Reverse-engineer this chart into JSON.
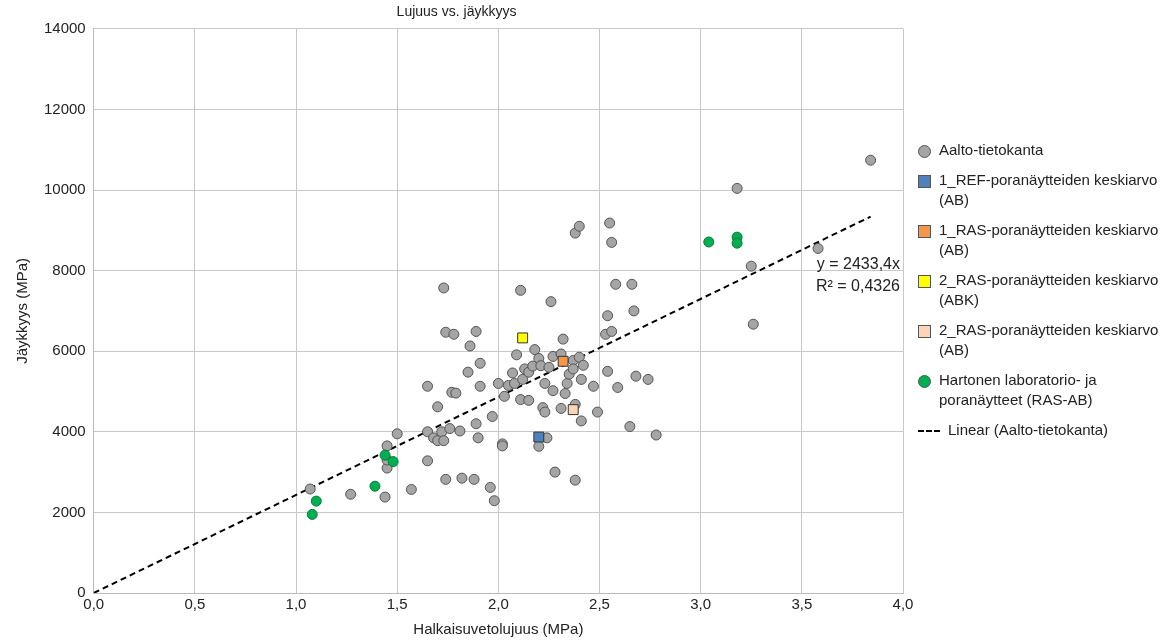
{
  "chart_data": {
    "type": "scatter",
    "title": "Lujuus vs. jäykkyys",
    "xlabel": "Halkaisuvetolujuus (MPa)",
    "ylabel": "Jäykkyys (MPa)",
    "xlim": [
      0,
      4
    ],
    "xticks": [
      {
        "value": 0,
        "label": "0,0"
      },
      {
        "value": 0.5,
        "label": "0,5"
      },
      {
        "value": 1,
        "label": "1,0"
      },
      {
        "value": 1.5,
        "label": "1,5"
      },
      {
        "value": 2,
        "label": "2,0"
      },
      {
        "value": 2.5,
        "label": "2,5"
      },
      {
        "value": 3,
        "label": "3,0"
      },
      {
        "value": 3.5,
        "label": "3,5"
      },
      {
        "value": 4,
        "label": "4,0"
      }
    ],
    "ylim": [
      0,
      14000
    ],
    "yticks": [
      0,
      2000,
      4000,
      6000,
      8000,
      10000,
      12000,
      14000
    ],
    "grid": true,
    "legend": "right",
    "series": [
      {
        "name": "Aalto-tietokanta",
        "color": "#a5a5a5",
        "marker": "circle",
        "x": [
          1.07,
          1.27,
          1.44,
          1.45,
          1.45,
          1.45,
          1.5,
          1.57,
          1.65,
          1.65,
          1.65,
          1.68,
          1.7,
          1.7,
          1.72,
          1.73,
          1.73,
          1.74,
          1.74,
          1.76,
          1.77,
          1.78,
          1.79,
          1.81,
          1.82,
          1.85,
          1.86,
          1.88,
          1.89,
          1.89,
          1.9,
          1.91,
          1.91,
          1.96,
          1.97,
          1.98,
          2.0,
          2.02,
          2.02,
          2.03,
          2.05,
          2.07,
          2.08,
          2.09,
          2.11,
          2.11,
          2.12,
          2.13,
          2.15,
          2.15,
          2.17,
          2.18,
          2.2,
          2.2,
          2.21,
          2.22,
          2.23,
          2.23,
          2.24,
          2.25,
          2.26,
          2.27,
          2.27,
          2.28,
          2.31,
          2.31,
          2.32,
          2.33,
          2.34,
          2.35,
          2.37,
          2.37,
          2.38,
          2.38,
          2.38,
          2.4,
          2.4,
          2.41,
          2.41,
          2.42,
          2.47,
          2.49,
          2.53,
          2.54,
          2.54,
          2.55,
          2.56,
          2.56,
          2.58,
          2.59,
          2.65,
          2.66,
          2.67,
          2.68,
          2.74,
          2.78,
          3.18,
          3.25,
          3.26,
          3.58,
          3.84
        ],
        "values": [
          2580,
          2450,
          2380,
          3100,
          3300,
          3650,
          3950,
          2570,
          3280,
          4000,
          5130,
          3850,
          3780,
          4620,
          4000,
          3780,
          7570,
          6470,
          2820,
          4080,
          4980,
          6420,
          4960,
          4020,
          2850,
          5480,
          6130,
          2820,
          6490,
          4200,
          3850,
          5700,
          5130,
          2620,
          4380,
          2290,
          5200,
          3700,
          3650,
          4880,
          5150,
          5460,
          5200,
          5910,
          7510,
          4800,
          5300,
          5560,
          5480,
          4780,
          5630,
          6040,
          3640,
          5820,
          5640,
          4600,
          5200,
          4490,
          3850,
          5600,
          7230,
          5870,
          5020,
          3000,
          5930,
          4580,
          6300,
          4950,
          5200,
          5430,
          5770,
          5560,
          2800,
          4680,
          8930,
          5850,
          9100,
          5300,
          4270,
          5650,
          5130,
          4490,
          6420,
          6880,
          5500,
          9180,
          6490,
          8700,
          7660,
          5100,
          4130,
          7660,
          7000,
          5380,
          5300,
          3920,
          10040,
          8110,
          6670,
          8550,
          10740
        ]
      },
      {
        "name": "1_REF-poranäytteiden keskiarvo (AB)",
        "color": "#4f81bd",
        "marker": "square",
        "x": [
          2.2
        ],
        "values": [
          3870
        ]
      },
      {
        "name": "1_RAS-poranäytteiden keskiarvo (AB)",
        "color": "#f79646",
        "marker": "square",
        "x": [
          2.32
        ],
        "values": [
          5750
        ]
      },
      {
        "name": "2_RAS-poranäytteiden keskiarvo (ABK)",
        "color": "#ffff00",
        "marker": "square",
        "x": [
          2.12
        ],
        "values": [
          6330
        ]
      },
      {
        "name": "2_RAS-poranäytteiden keskiarvo (AB)",
        "color": "#fbd5b5",
        "marker": "square",
        "x": [
          2.37
        ],
        "values": [
          4550
        ]
      },
      {
        "name": "Hartonen laboratorio- ja poranäytteet (RAS-AB)",
        "color": "#00b050",
        "marker": "circle",
        "x": [
          1.08,
          1.1,
          1.39,
          1.44,
          1.48,
          3.04,
          3.18,
          3.18
        ],
        "values": [
          1950,
          2280,
          2650,
          3420,
          3260,
          8710,
          8830,
          8680
        ]
      },
      {
        "name": "Linear (Aalto-tietokanta)",
        "type": "line",
        "color": "#000000",
        "line_style": "dashed",
        "marker": "none",
        "x": [
          0,
          3.84
        ],
        "values": [
          0,
          9340
        ]
      }
    ],
    "annotations": [
      "y = 2433,4x",
      "R² = 0,4326"
    ]
  }
}
